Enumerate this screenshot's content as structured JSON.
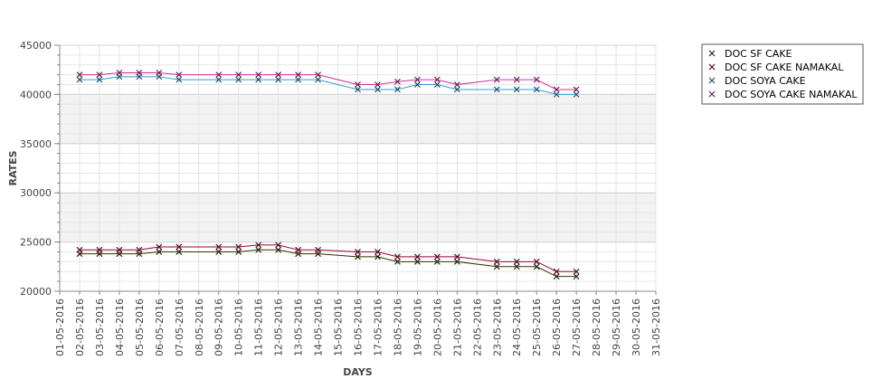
{
  "chart_data": {
    "type": "line",
    "title": "",
    "xlabel": "DAYS",
    "ylabel": "RATES",
    "ylim": [
      20000,
      45000
    ],
    "y_ticks": [
      "20000",
      "25000",
      "30000",
      "35000",
      "40000",
      "45000"
    ],
    "grid": true,
    "legend_position": "top-right",
    "categories": [
      "01-05-2016",
      "02-05-2016",
      "03-05-2016",
      "04-05-2016",
      "05-05-2016",
      "06-05-2016",
      "07-05-2016",
      "08-05-2016",
      "09-05-2016",
      "10-05-2016",
      "11-05-2016",
      "12-05-2016",
      "13-05-2016",
      "14-05-2016",
      "15-05-2016",
      "16-05-2016",
      "17-05-2016",
      "18-05-2016",
      "19-05-2016",
      "20-05-2016",
      "21-05-2016",
      "22-05-2016",
      "23-05-2016",
      "24-05-2016",
      "25-05-2016",
      "26-05-2016",
      "27-05-2016",
      "28-05-2016",
      "29-05-2016",
      "30-05-2016",
      "31-05-2016"
    ],
    "series": [
      {
        "name": "DOC SF CAKE",
        "color": "#333300",
        "points": [
          [
            "02-05-2016",
            23800
          ],
          [
            "03-05-2016",
            23800
          ],
          [
            "04-05-2016",
            23800
          ],
          [
            "05-05-2016",
            23800
          ],
          [
            "06-05-2016",
            24000
          ],
          [
            "07-05-2016",
            24000
          ],
          [
            "09-05-2016",
            24000
          ],
          [
            "10-05-2016",
            24000
          ],
          [
            "11-05-2016",
            24200
          ],
          [
            "12-05-2016",
            24200
          ],
          [
            "13-05-2016",
            23800
          ],
          [
            "14-05-2016",
            23800
          ],
          [
            "16-05-2016",
            23500
          ],
          [
            "17-05-2016",
            23500
          ],
          [
            "18-05-2016",
            23000
          ],
          [
            "19-05-2016",
            23000
          ],
          [
            "20-05-2016",
            23000
          ],
          [
            "21-05-2016",
            23000
          ],
          [
            "23-05-2016",
            22500
          ],
          [
            "24-05-2016",
            22500
          ],
          [
            "25-05-2016",
            22500
          ],
          [
            "26-05-2016",
            21500
          ],
          [
            "27-05-2016",
            21500
          ]
        ]
      },
      {
        "name": "DOC SF CAKE NAMAKAL",
        "color": "#990033",
        "points": [
          [
            "02-05-2016",
            24200
          ],
          [
            "03-05-2016",
            24200
          ],
          [
            "04-05-2016",
            24200
          ],
          [
            "05-05-2016",
            24200
          ],
          [
            "06-05-2016",
            24500
          ],
          [
            "07-05-2016",
            24500
          ],
          [
            "09-05-2016",
            24500
          ],
          [
            "10-05-2016",
            24500
          ],
          [
            "11-05-2016",
            24700
          ],
          [
            "12-05-2016",
            24700
          ],
          [
            "13-05-2016",
            24200
          ],
          [
            "14-05-2016",
            24200
          ],
          [
            "16-05-2016",
            24000
          ],
          [
            "17-05-2016",
            24000
          ],
          [
            "18-05-2016",
            23500
          ],
          [
            "19-05-2016",
            23500
          ],
          [
            "20-05-2016",
            23500
          ],
          [
            "21-05-2016",
            23500
          ],
          [
            "23-05-2016",
            23000
          ],
          [
            "24-05-2016",
            23000
          ],
          [
            "25-05-2016",
            23000
          ],
          [
            "26-05-2016",
            22000
          ],
          [
            "27-05-2016",
            22000
          ]
        ]
      },
      {
        "name": "DOC SOYA CAKE",
        "color": "#3399cc",
        "points": [
          [
            "02-05-2016",
            41500
          ],
          [
            "03-05-2016",
            41500
          ],
          [
            "04-05-2016",
            41800
          ],
          [
            "05-05-2016",
            41800
          ],
          [
            "06-05-2016",
            41800
          ],
          [
            "07-05-2016",
            41500
          ],
          [
            "09-05-2016",
            41500
          ],
          [
            "10-05-2016",
            41500
          ],
          [
            "11-05-2016",
            41500
          ],
          [
            "12-05-2016",
            41500
          ],
          [
            "13-05-2016",
            41500
          ],
          [
            "14-05-2016",
            41500
          ],
          [
            "16-05-2016",
            40500
          ],
          [
            "17-05-2016",
            40500
          ],
          [
            "18-05-2016",
            40500
          ],
          [
            "19-05-2016",
            41000
          ],
          [
            "20-05-2016",
            41000
          ],
          [
            "21-05-2016",
            40500
          ],
          [
            "23-05-2016",
            40500
          ],
          [
            "24-05-2016",
            40500
          ],
          [
            "25-05-2016",
            40500
          ],
          [
            "26-05-2016",
            40000
          ],
          [
            "27-05-2016",
            40000
          ]
        ]
      },
      {
        "name": "DOC SOYA CAKE NAMAKAL",
        "color": "#cc3399",
        "points": [
          [
            "02-05-2016",
            42000
          ],
          [
            "03-05-2016",
            42000
          ],
          [
            "04-05-2016",
            42200
          ],
          [
            "05-05-2016",
            42200
          ],
          [
            "06-05-2016",
            42200
          ],
          [
            "07-05-2016",
            42000
          ],
          [
            "09-05-2016",
            42000
          ],
          [
            "10-05-2016",
            42000
          ],
          [
            "11-05-2016",
            42000
          ],
          [
            "12-05-2016",
            42000
          ],
          [
            "13-05-2016",
            42000
          ],
          [
            "14-05-2016",
            42000
          ],
          [
            "16-05-2016",
            41000
          ],
          [
            "17-05-2016",
            41000
          ],
          [
            "18-05-2016",
            41300
          ],
          [
            "19-05-2016",
            41500
          ],
          [
            "20-05-2016",
            41500
          ],
          [
            "21-05-2016",
            41000
          ],
          [
            "23-05-2016",
            41500
          ],
          [
            "24-05-2016",
            41500
          ],
          [
            "25-05-2016",
            41500
          ],
          [
            "26-05-2016",
            40500
          ],
          [
            "27-05-2016",
            40500
          ]
        ]
      }
    ]
  }
}
